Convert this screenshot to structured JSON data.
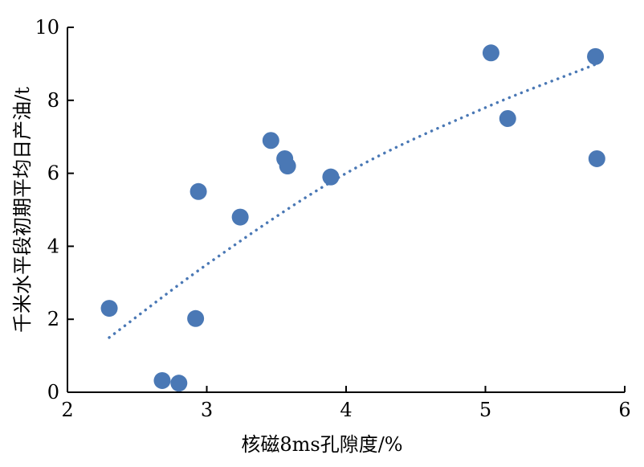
{
  "chart_data": {
    "type": "scatter",
    "title": "",
    "xlabel": "核磁8ms孔隙度/%",
    "ylabel": "千米水平段初期平均日产油/t",
    "xlim": [
      2,
      6
    ],
    "ylim": [
      0,
      10
    ],
    "xticks": [
      "2",
      "3",
      "4",
      "5",
      "6"
    ],
    "yticks": [
      "0",
      "2",
      "4",
      "6",
      "8",
      "10"
    ],
    "grid": false,
    "legend": "none",
    "marker_color": "#4a78b5",
    "trendline_color": "#4a78b5",
    "trendline_style": "dotted",
    "trendline_x_range": [
      2.3,
      5.8
    ],
    "trendline_points": [
      [
        2.3,
        1.5
      ],
      [
        3.0,
        3.5
      ],
      [
        4.0,
        6.0
      ],
      [
        5.0,
        7.8
      ],
      [
        5.8,
        9.0
      ]
    ],
    "points": [
      {
        "x": 2.3,
        "y": 2.3
      },
      {
        "x": 2.68,
        "y": 0.32
      },
      {
        "x": 2.8,
        "y": 0.25
      },
      {
        "x": 2.92,
        "y": 2.02
      },
      {
        "x": 2.94,
        "y": 5.5
      },
      {
        "x": 3.24,
        "y": 4.8
      },
      {
        "x": 3.46,
        "y": 6.9
      },
      {
        "x": 3.56,
        "y": 6.4
      },
      {
        "x": 3.58,
        "y": 6.2
      },
      {
        "x": 3.89,
        "y": 5.9
      },
      {
        "x": 5.04,
        "y": 9.3
      },
      {
        "x": 5.16,
        "y": 7.5
      },
      {
        "x": 5.79,
        "y": 9.2
      },
      {
        "x": 5.8,
        "y": 6.4
      }
    ]
  }
}
